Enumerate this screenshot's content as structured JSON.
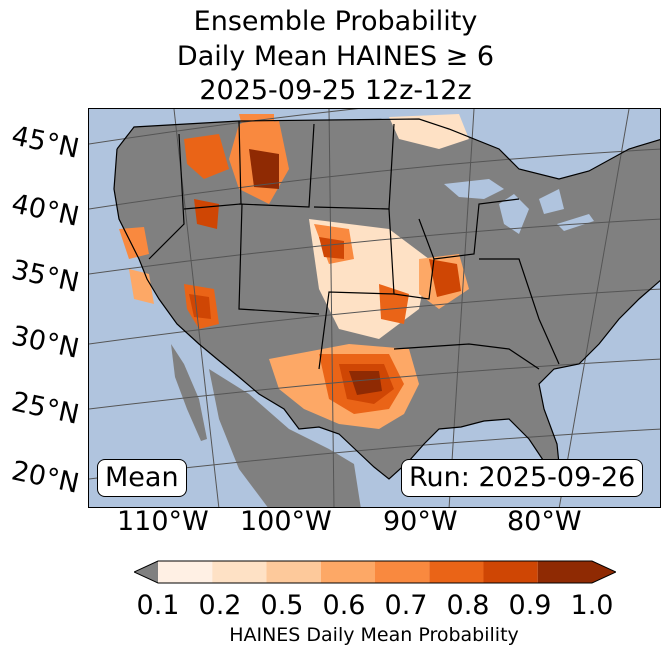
{
  "title": {
    "line1": "Ensemble Probability",
    "line2": "Daily Mean HAINES ≥ 6",
    "line3": "2025-09-25 12z-12z"
  },
  "map": {
    "left_box_label": "Mean",
    "run_label": "Run: 2025-09-26",
    "lat_labels": [
      "45°N",
      "40°N",
      "35°N",
      "30°N",
      "25°N",
      "20°N"
    ],
    "lon_labels": [
      "110°W",
      "100°W",
      "90°W",
      "80°W"
    ],
    "colors": {
      "ocean": "#b0c4de",
      "land_no_data": "#808080",
      "border": "#000000"
    }
  },
  "colorbar": {
    "label": "HAINES Daily Mean Probability",
    "ticks": [
      "0.1",
      "0.2",
      "0.5",
      "0.6",
      "0.7",
      "0.8",
      "0.9",
      "1.0"
    ],
    "under_color": "#808080",
    "colors": [
      "#fff0e4",
      "#fee1c5",
      "#fdc99b",
      "#fda866",
      "#f9893f",
      "#ea6417",
      "#cf4604",
      "#8f2a03"
    ]
  }
}
